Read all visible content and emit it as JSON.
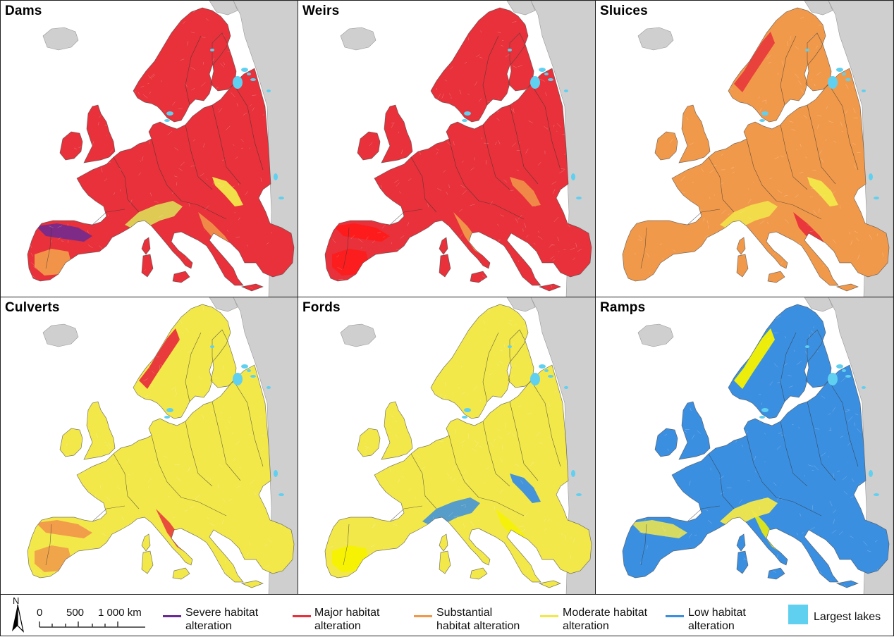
{
  "panels": [
    {
      "title": "Dams",
      "base": "#e8313a",
      "patches": [
        [
          "#6a2a94",
          "severe"
        ],
        [
          "#e8313a",
          "major"
        ],
        [
          "#f2e84a",
          "moderate"
        ],
        [
          "#f1994a",
          "substantial"
        ]
      ]
    },
    {
      "title": "Weirs",
      "base": "#e8313a",
      "patches": [
        [
          "#f1994a",
          "substantial"
        ],
        [
          "#ff1a1a",
          "major"
        ]
      ]
    },
    {
      "title": "Sluices",
      "base": "#f1994a",
      "patches": [
        [
          "#e8313a",
          "major"
        ],
        [
          "#f2e84a",
          "moderate"
        ]
      ]
    },
    {
      "title": "Culverts",
      "base": "#f2e84a",
      "patches": [
        [
          "#f1994a",
          "substantial"
        ],
        [
          "#e8313a",
          "major"
        ]
      ]
    },
    {
      "title": "Fords",
      "base": "#f2e84a",
      "patches": [
        [
          "#3b8fe0",
          "low"
        ],
        [
          "#f7f200",
          "moderate"
        ]
      ]
    },
    {
      "title": "Ramps",
      "base": "#3b8fe0",
      "patches": [
        [
          "#f7f200",
          "moderate"
        ],
        [
          "#f2e84a",
          "moderate"
        ]
      ]
    }
  ],
  "colors": {
    "severe": "#6a2a94",
    "major": "#e8313a",
    "substantial": "#f1994a",
    "moderate": "#f2e84a",
    "low": "#3b8fe0",
    "lakes": "#5fd0f0",
    "land_outside": "#cfcfcf"
  },
  "legend": {
    "north": "N",
    "scale_labels": [
      "0",
      "500",
      "1 000 km"
    ],
    "items": [
      {
        "label_1": "Severe habitat",
        "label_2": "alteration",
        "color": "#6a2a94"
      },
      {
        "label_1": "Major habitat",
        "label_2": "alteration",
        "color": "#e8313a"
      },
      {
        "label_1": "Substantial",
        "label_2": "habitat alteration",
        "color": "#f1994a"
      },
      {
        "label_1": "Moderate habitat",
        "label_2": "alteration",
        "color": "#f2e84a"
      },
      {
        "label_1": "Low habitat",
        "label_2": "alteration",
        "color": "#3b8fe0"
      }
    ],
    "lakes_label": "Largest lakes"
  }
}
